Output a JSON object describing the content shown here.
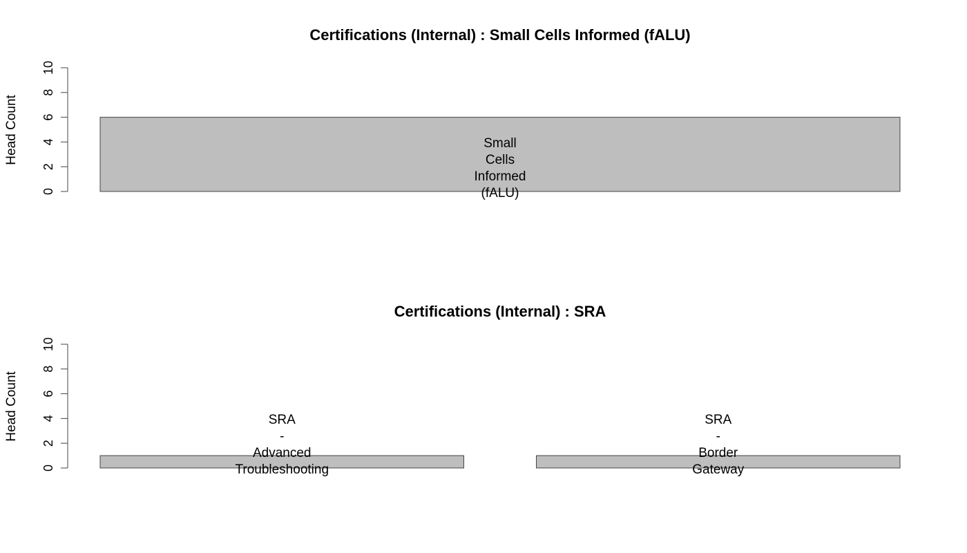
{
  "chart_data": [
    {
      "type": "bar",
      "title": "Certifications (Internal) : Small Cells Informed (fALU)",
      "ylabel": "Head Count",
      "ylim": [
        0,
        10
      ],
      "yticks": [
        0,
        2,
        4,
        6,
        8,
        10
      ],
      "categories": [
        [
          "Small",
          "Cells",
          "Informed",
          "(fALU)"
        ]
      ],
      "values": [
        6
      ],
      "bar_color": "#bebebe"
    },
    {
      "type": "bar",
      "title": "Certifications (Internal) : SRA",
      "ylabel": "Head Count",
      "ylim": [
        0,
        10
      ],
      "yticks": [
        0,
        2,
        4,
        6,
        8,
        10
      ],
      "categories": [
        [
          "SRA",
          "-",
          "Advanced",
          "Troubleshooting"
        ],
        [
          "SRA",
          "-",
          "Border",
          "Gateway"
        ]
      ],
      "values": [
        1,
        1
      ],
      "bar_color": "#bebebe"
    }
  ]
}
